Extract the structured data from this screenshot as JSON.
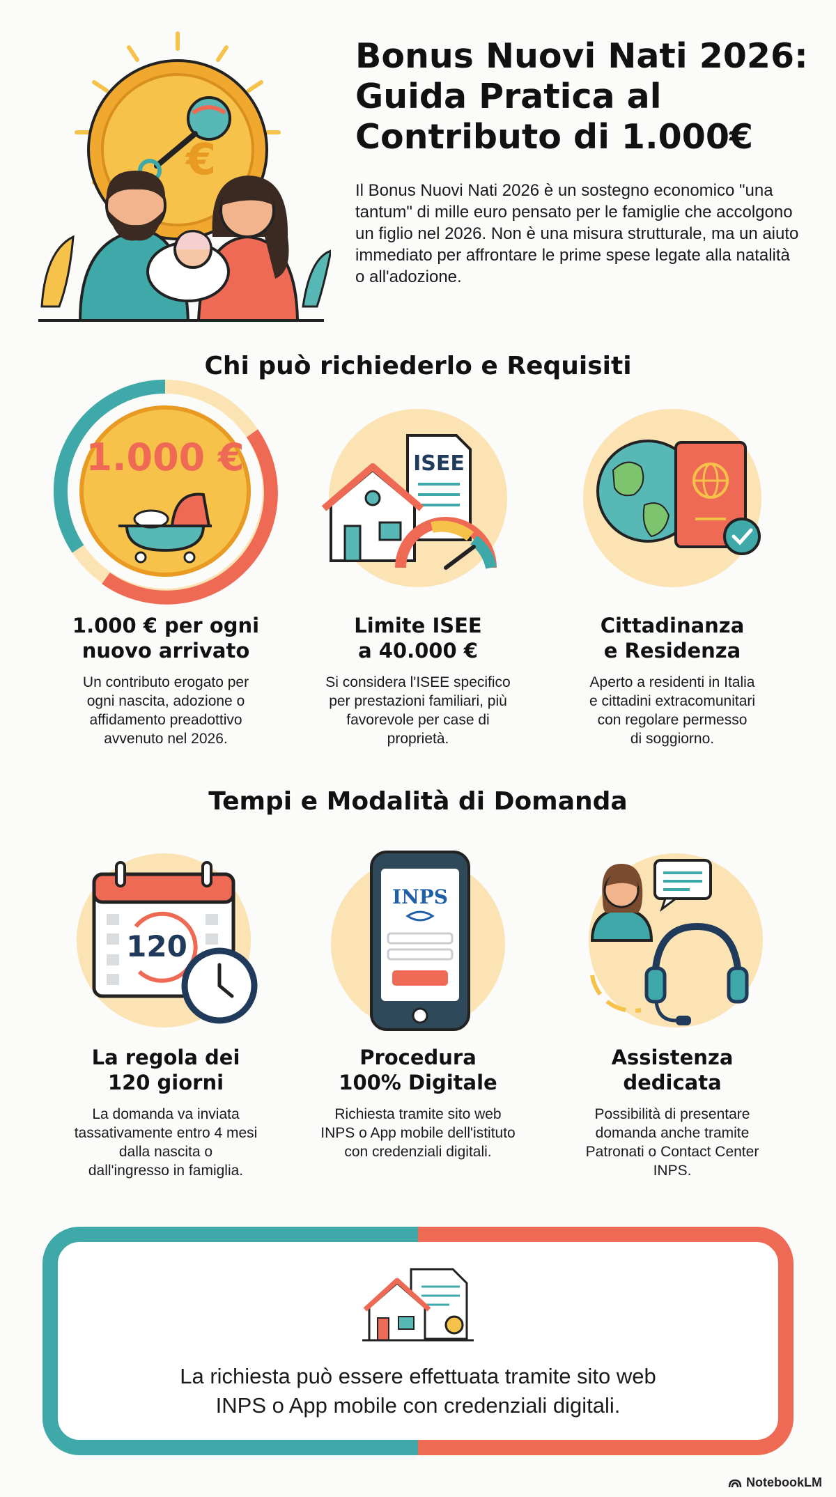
{
  "header": {
    "title": "Bonus Nuovi Nati 2026:\nGuida Pratica al\nContributo di 1.000€",
    "intro": "Il Bonus Nuovi Nati 2026 è un sostegno economico \"una tantum\" di mille euro pensato per le famiglie che accolgono un figlio nel 2026. Non è una misura strutturale, ma un aiuto immediato per affrontare le prime spese legate alla natalità o all'adozione."
  },
  "section_requisiti": {
    "title": "Chi può richiederlo e Requisiti",
    "cards": [
      {
        "icon_label": "1.000 €",
        "icon": "coin-cradle-icon",
        "title": "1.000 € per ogni\nnuovo arrivato",
        "text": "Un contributo erogato per\nogni nascita, adozione o\naffidamento preadottivo\navvenuto nel 2026."
      },
      {
        "icon_label": "ISEE",
        "icon": "house-isee-gauge-icon",
        "title": "Limite ISEE\na 40.000 €",
        "text": "Si considera l'ISEE specifico\nper prestazioni familiari, più\nfavorevole per case di\nproprietà."
      },
      {
        "icon": "globe-passport-icon",
        "title": "Cittadinanza\ne Residenza",
        "text": "Aperto a residenti in Italia\ne cittadini extracomunitari\ncon regolare permesso\ndi soggiorno."
      }
    ]
  },
  "section_tempi": {
    "title": "Tempi e Modalità di Domanda",
    "cards": [
      {
        "icon_label": "120",
        "icon": "calendar-clock-icon",
        "title": "La regola dei\n120 giorni",
        "text": "La domanda va inviata\ntassativamente entro 4 mesi\ndalla nascita o\ndall'ingresso in famiglia."
      },
      {
        "icon_label": "INPS",
        "icon": "smartphone-icon",
        "title": "Procedura\n100% Digitale",
        "text": "Richiesta tramite sito web\nINPS o App mobile dell'istituto\ncon credenziali digitali."
      },
      {
        "icon": "headset-operator-icon",
        "title": "Assistenza\ndedicata",
        "text": "Possibilità di presentare\ndomanda anche tramite\nPatronati o Contact Center\nINPS."
      }
    ]
  },
  "footer": {
    "text": "La richiesta può essere effettuata tramite sito web\nINPS o App mobile con credenziali digitali.",
    "brand": "NotebookLM"
  },
  "colors": {
    "teal": "#3fa9a9",
    "coral": "#ef6a55",
    "gold": "#f6c24a",
    "pale": "#fbe3b4"
  }
}
